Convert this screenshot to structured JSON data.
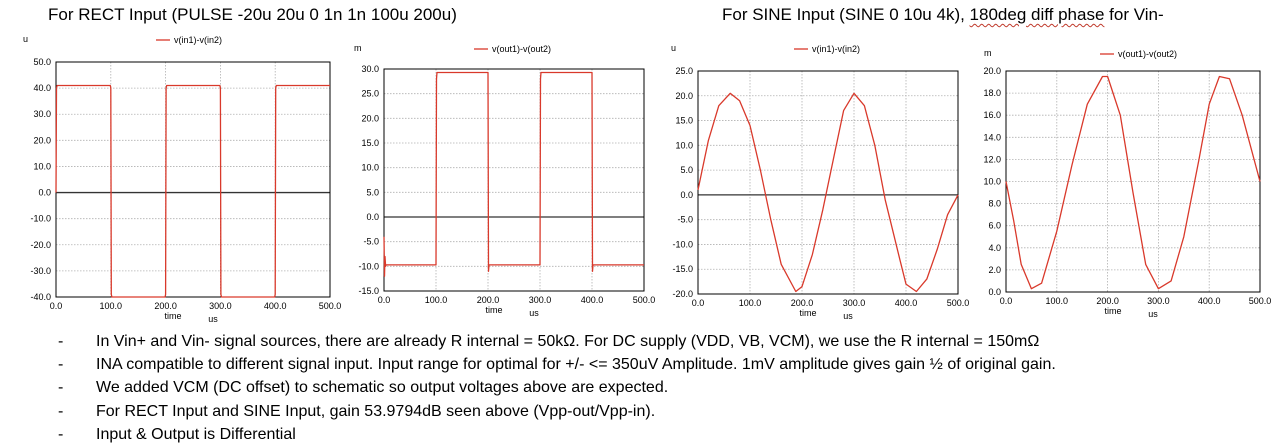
{
  "captions": {
    "left": "For RECT Input (PULSE -20u 20u 0 1n 1n 100u 200u)",
    "right_prefix": "For SINE  Input (SINE 0 10u 4k), ",
    "right_emph": "180deg diff phase",
    "right_suffix": " for Vin-"
  },
  "notes": [
    "In Vin+ and Vin- signal sources, there are already R internal = 50kΩ. For DC supply (VDD, VB, VCM), we use the R internal = 150mΩ",
    "INA compatible to different signal input. Input range for optimal for +/- <= 350uV Amplitude. 1mV amplitude gives gain ½ of original gain.",
    "We added VCM (DC offset) to schematic so output voltages above are expected.",
    "For RECT Input and SINE Input, gain 53.9794dB seen above (Vpp-out/Vpp-in).",
    "Input & Output is Differential"
  ],
  "note_bullet": "-",
  "colors": {
    "trace": "#d9392b",
    "grid": "#b0b0b0",
    "axis": "#000000",
    "zero_line": "#333333"
  },
  "chart_data": [
    {
      "type": "line",
      "y_unit": "u",
      "legend": "v(in1)-v(in2)",
      "xlabel": "time",
      "x_unit": "us",
      "xlim": [
        0,
        500
      ],
      "ylim": [
        -40,
        50
      ],
      "xticks": [
        "0.0",
        "100.0",
        "200.0",
        "300.0",
        "400.0",
        "500.0"
      ],
      "yticks": [
        "50.0",
        "40.0",
        "30.0",
        "20.0",
        "10.0",
        "0.0",
        "-10.0",
        "-20.0",
        "-30.0",
        "-40.0"
      ],
      "x": [
        0,
        1,
        2,
        99,
        100,
        101,
        102,
        199,
        200,
        201,
        202,
        299,
        300,
        301,
        302,
        399,
        400,
        401,
        402,
        500
      ],
      "values": [
        0,
        40,
        41,
        41,
        40,
        -39,
        -40,
        -40,
        -39,
        40,
        41,
        41,
        40,
        -39,
        -40,
        -40,
        -39,
        40,
        41,
        41
      ]
    },
    {
      "type": "line",
      "y_unit": "m",
      "legend": "v(out1)-v(out2)",
      "xlabel": "time",
      "x_unit": "us",
      "xlim": [
        0,
        500
      ],
      "ylim": [
        -15,
        30
      ],
      "xticks": [
        "0.0",
        "100.0",
        "200.0",
        "300.0",
        "400.0",
        "500.0"
      ],
      "yticks": [
        "30.0",
        "25.0",
        "20.0",
        "15.0",
        "10.0",
        "5.0",
        "0.0",
        "-5.0",
        "-10.0",
        "-15.0"
      ],
      "x": [
        0,
        1,
        2,
        3,
        4,
        99,
        100,
        101,
        102,
        103,
        199,
        200,
        201,
        202,
        203,
        299,
        300,
        301,
        302,
        303,
        399,
        400,
        401,
        402,
        403,
        500
      ],
      "values": [
        -4,
        -12,
        -8,
        -10,
        -9.7,
        -9.7,
        -9.7,
        28,
        29.3,
        29.3,
        29.3,
        29.3,
        -11,
        -9.7,
        -9.7,
        -9.7,
        -9.7,
        28,
        29.3,
        29.3,
        29.3,
        29.3,
        -11,
        -9.7,
        -9.7,
        -9.7
      ]
    },
    {
      "type": "line",
      "y_unit": "u",
      "legend": "v(in1)-v(in2)",
      "xlabel": "time",
      "x_unit": "us",
      "xlim": [
        0,
        500
      ],
      "ylim": [
        -20,
        25
      ],
      "xticks": [
        "0.0",
        "100.0",
        "200.0",
        "300.0",
        "400.0",
        "500.0"
      ],
      "yticks": [
        "25.0",
        "20.0",
        "15.0",
        "10.0",
        "5.0",
        "0.0",
        "-5.0",
        "-10.0",
        "-15.0",
        "-20.0"
      ],
      "x": [
        0,
        20,
        40,
        62,
        80,
        100,
        120,
        140,
        160,
        188,
        200,
        220,
        240,
        262,
        280,
        300,
        320,
        340,
        360,
        388,
        400,
        420,
        440,
        460,
        480,
        500
      ],
      "values": [
        1,
        11,
        18,
        20.5,
        19,
        14,
        5,
        -5,
        -14,
        -19.5,
        -18.5,
        -12,
        -3,
        8,
        17,
        20.5,
        18,
        10,
        -1,
        -13,
        -18,
        -19.5,
        -17,
        -11,
        -4,
        0
      ]
    },
    {
      "type": "line",
      "y_unit": "m",
      "legend": "v(out1)-v(out2)",
      "xlabel": "time",
      "x_unit": "us",
      "xlim": [
        0,
        500
      ],
      "ylim": [
        0,
        20
      ],
      "xticks": [
        "0.0",
        "100.0",
        "200.0",
        "300.0",
        "400.0",
        "500.0"
      ],
      "yticks": [
        "20.0",
        "18.0",
        "16.0",
        "14.0",
        "12.0",
        "10.0",
        "8.0",
        "6.0",
        "4.0",
        "2.0",
        "0.0"
      ],
      "x": [
        0,
        15,
        30,
        50,
        70,
        100,
        130,
        160,
        190,
        200,
        225,
        250,
        275,
        300,
        325,
        350,
        380,
        400,
        420,
        440,
        465,
        500
      ],
      "values": [
        10,
        6.5,
        2.5,
        0.3,
        0.8,
        5.5,
        11.5,
        17,
        19.5,
        19.5,
        16,
        9,
        2.5,
        0.3,
        1,
        5,
        12,
        17,
        19.5,
        19.3,
        16,
        10
      ]
    }
  ]
}
